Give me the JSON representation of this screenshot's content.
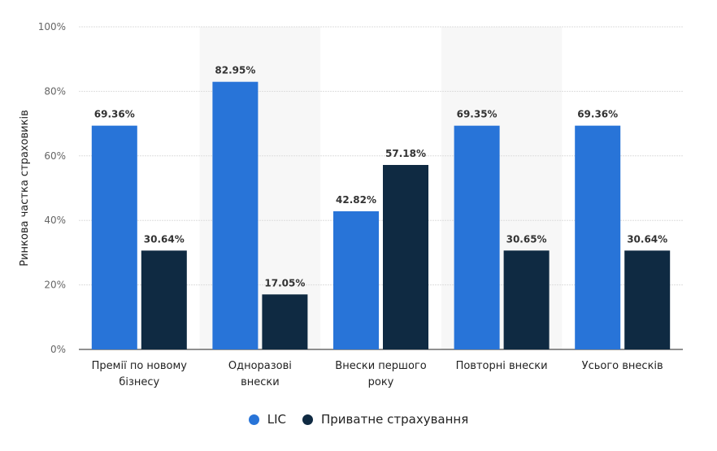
{
  "chart_data": {
    "type": "bar",
    "categories": [
      [
        "Премії по новому",
        "бізнесу"
      ],
      [
        "Одноразові",
        "внески"
      ],
      [
        "Внески першого",
        "року"
      ],
      [
        "Повторні внески"
      ],
      [
        "Усього внесків"
      ]
    ],
    "series": [
      {
        "name": "LIC",
        "color": "#2874d8",
        "values": [
          69.36,
          82.95,
          42.82,
          69.35,
          69.36
        ],
        "labels": [
          "69.36%",
          "82.95%",
          "42.82%",
          "69.35%",
          "69.36%"
        ]
      },
      {
        "name": "Приватне страхування",
        "color": "#0f2a42",
        "values": [
          30.64,
          17.05,
          57.18,
          30.65,
          30.64
        ],
        "labels": [
          "30.64%",
          "17.05%",
          "57.18%",
          "30.65%",
          "30.64%"
        ]
      }
    ],
    "ylabel": "Ринкова частка страховиків",
    "xlabel": "",
    "ylim": [
      0,
      100
    ],
    "yticks": [
      "0%",
      "20%",
      "40%",
      "60%",
      "80%",
      "100%"
    ],
    "grid": true,
    "legend": "bottom-center"
  }
}
